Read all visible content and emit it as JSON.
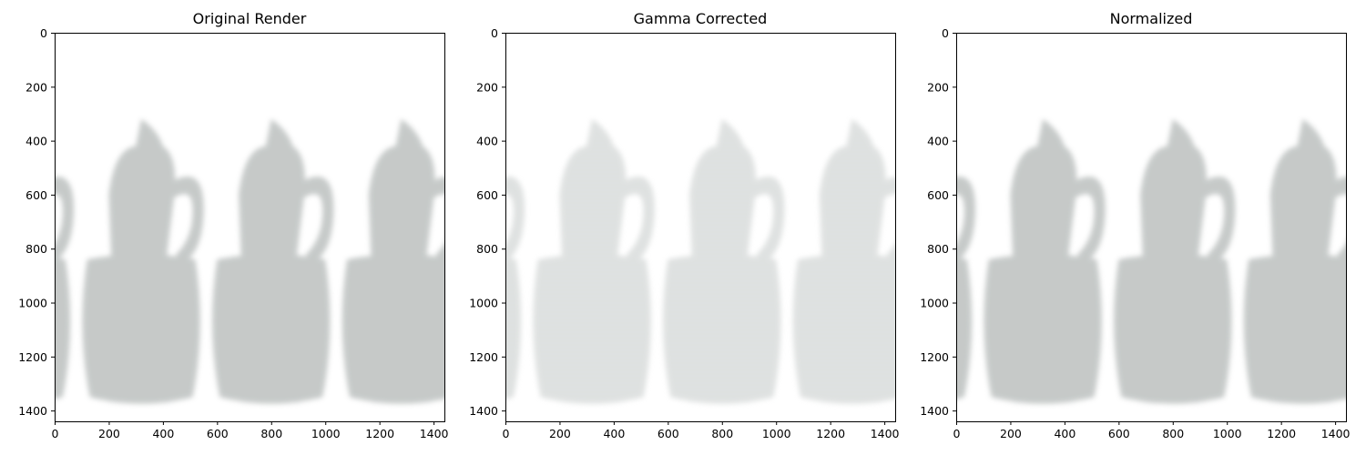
{
  "figure": {
    "panels": [
      {
        "title": "Original Render",
        "xticks": [
          "0",
          "200",
          "400",
          "600",
          "800",
          "1000",
          "1200",
          "1400"
        ],
        "yticks": [
          "0",
          "200",
          "400",
          "600",
          "800",
          "1000",
          "1200",
          "1400"
        ],
        "image": {
          "variant": "original",
          "background": "#ffffff",
          "fill": "#c8ccc8",
          "stripe": "#b4b8bc",
          "opacity": 0.9
        }
      },
      {
        "title": "Gamma Corrected",
        "xticks": [
          "0",
          "200",
          "400",
          "600",
          "800",
          "1000",
          "1200",
          "1400"
        ],
        "yticks": [
          "0",
          "200",
          "400",
          "600",
          "800",
          "1000",
          "1200",
          "1400"
        ],
        "image": {
          "variant": "gamma",
          "background": "#ffffff",
          "fill": "#dcdfdc",
          "stripe": "#cfd3d6",
          "opacity": 0.8
        }
      },
      {
        "title": "Normalized",
        "xticks": [
          "0",
          "200",
          "400",
          "600",
          "800",
          "1000",
          "1200",
          "1400"
        ],
        "yticks": [
          "0",
          "200",
          "400",
          "600",
          "800",
          "1000",
          "1200",
          "1400"
        ],
        "image": {
          "variant": "normalized",
          "background": "#ffffff",
          "fill": "#c8ccc8",
          "stripe": "#b4b8bc",
          "opacity": 0.9
        }
      }
    ]
  }
}
